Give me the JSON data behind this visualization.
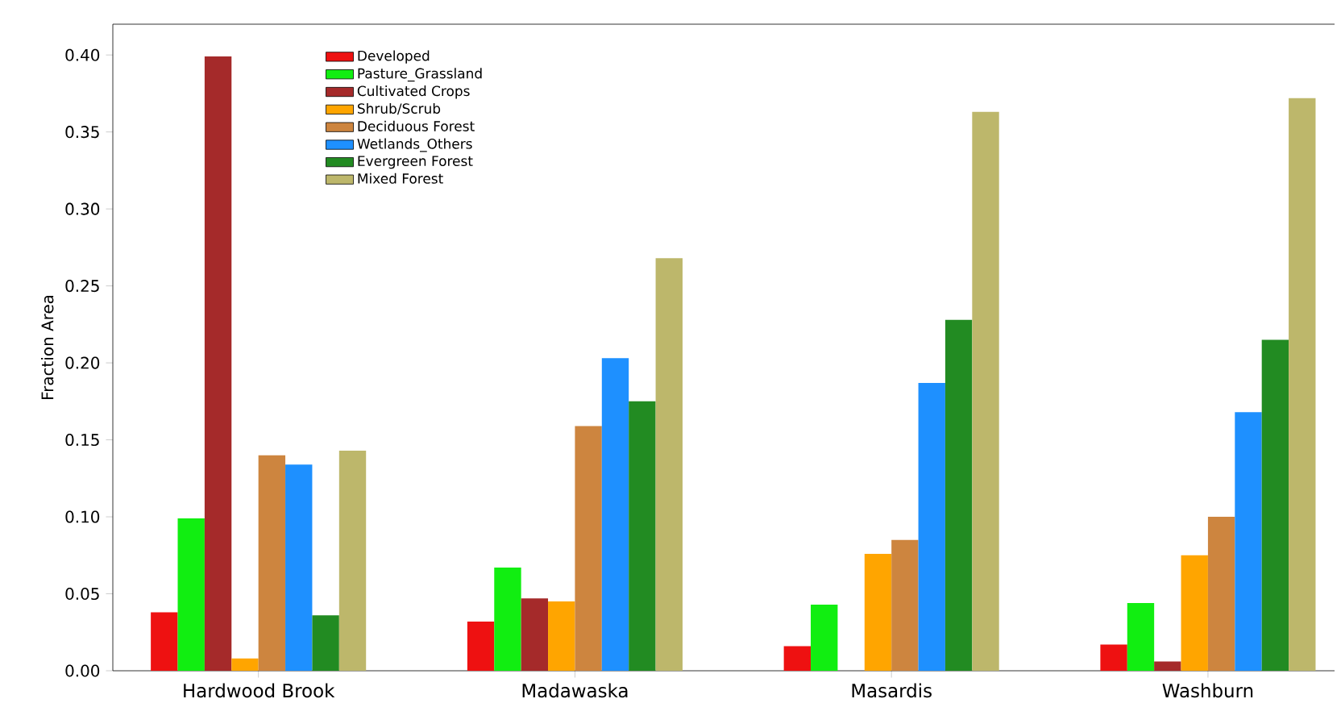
{
  "chart_data": {
    "type": "bar",
    "ylabel": "Fraction Area",
    "categories": [
      "Hardwood Brook",
      "Madawaska",
      "Masardis",
      "Washburn"
    ],
    "series": [
      {
        "name": "Developed",
        "color": "#ee1111",
        "values": [
          0.038,
          0.032,
          0.016,
          0.017
        ]
      },
      {
        "name": "Pasture_Grassland",
        "color": "#11ee11",
        "values": [
          0.099,
          0.067,
          0.043,
          0.044
        ]
      },
      {
        "name": "Cultivated Crops",
        "color": "#a52a2a",
        "values": [
          0.399,
          0.047,
          0,
          0.006
        ]
      },
      {
        "name": "Shrub/Scrub",
        "color": "#ffa500",
        "values": [
          0.008,
          0.045,
          0.076,
          0.075
        ]
      },
      {
        "name": "Deciduous Forest",
        "color": "#cd853f",
        "values": [
          0.14,
          0.159,
          0.085,
          0.1
        ]
      },
      {
        "name": "Wetlands_Others",
        "color": "#1e90ff",
        "values": [
          0.134,
          0.203,
          0.187,
          0.168
        ]
      },
      {
        "name": "Evergreen Forest",
        "color": "#228b22",
        "values": [
          0.036,
          0.175,
          0.228,
          0.215
        ]
      },
      {
        "name": "Mixed Forest",
        "color": "#bdb76b",
        "values": [
          0.143,
          0.268,
          0.363,
          0.372
        ]
      }
    ],
    "ylim": [
      0,
      0.42
    ],
    "yticks": [
      {
        "value": 0,
        "label": "0.00"
      },
      {
        "value": 0.05,
        "label": "0.05"
      },
      {
        "value": 0.1,
        "label": "0.10"
      },
      {
        "value": 0.15,
        "label": "0.15"
      },
      {
        "value": 0.2,
        "label": "0.20"
      },
      {
        "value": 0.25,
        "label": "0.25"
      },
      {
        "value": 0.3,
        "label": "0.30"
      },
      {
        "value": 0.35,
        "label": "0.35"
      },
      {
        "value": 0.4,
        "label": "0.40"
      }
    ],
    "legend": "top left",
    "grid": false
  }
}
